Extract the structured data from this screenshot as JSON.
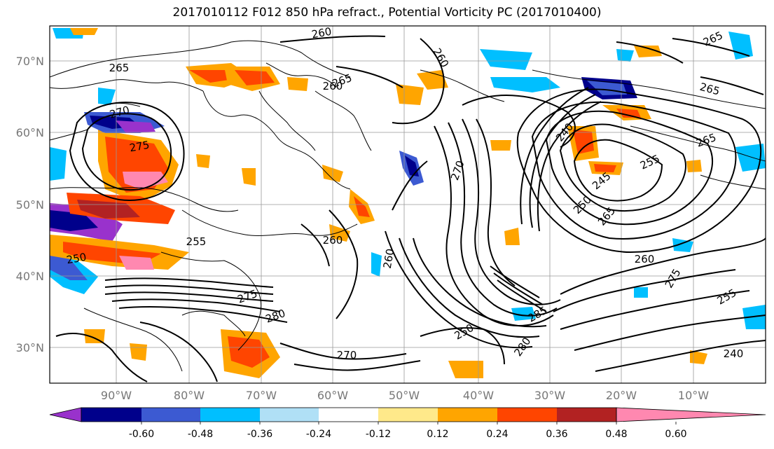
{
  "title": "2017010112 F012 850 hPa refract., Potential Vorticity PC (2017010400)",
  "lat_labels": [
    "70°N",
    "60°N",
    "50°N",
    "40°N",
    "30°N"
  ],
  "lon_labels": [
    "90°W",
    "80°W",
    "70°W",
    "60°W",
    "50°W",
    "40°W",
    "30°W",
    "20°W",
    "10°W"
  ],
  "colorbar": {
    "colors": [
      "#9932cc",
      "#00008b",
      "#3c5ad2",
      "#00bfff",
      "#b0e0f6",
      "#ffffff",
      "#ffe98a",
      "#ffa500",
      "#ff4500",
      "#b22222",
      "#ff88b0"
    ],
    "ticks": [
      "-0.60",
      "-0.48",
      "-0.36",
      "-0.24",
      "-0.12",
      "0.12",
      "0.24",
      "0.36",
      "0.48",
      "0.60"
    ]
  },
  "contour_labels": [
    {
      "text": "260"
    },
    {
      "text": "265"
    },
    {
      "text": "265"
    },
    {
      "text": "260"
    },
    {
      "text": "260"
    },
    {
      "text": "265"
    },
    {
      "text": "270"
    },
    {
      "text": "275"
    },
    {
      "text": "265"
    },
    {
      "text": "240"
    },
    {
      "text": "245"
    },
    {
      "text": "250"
    },
    {
      "text": "255"
    },
    {
      "text": "265"
    },
    {
      "text": "265"
    },
    {
      "text": "260"
    },
    {
      "text": "250"
    },
    {
      "text": "255"
    },
    {
      "text": "260"
    },
    {
      "text": "275"
    },
    {
      "text": "280"
    },
    {
      "text": "270"
    },
    {
      "text": "285"
    },
    {
      "text": "280"
    },
    {
      "text": "270"
    },
    {
      "text": "240"
    },
    {
      "text": "275"
    },
    {
      "text": "255"
    },
    {
      "text": "250"
    },
    {
      "text": "260"
    }
  ]
}
